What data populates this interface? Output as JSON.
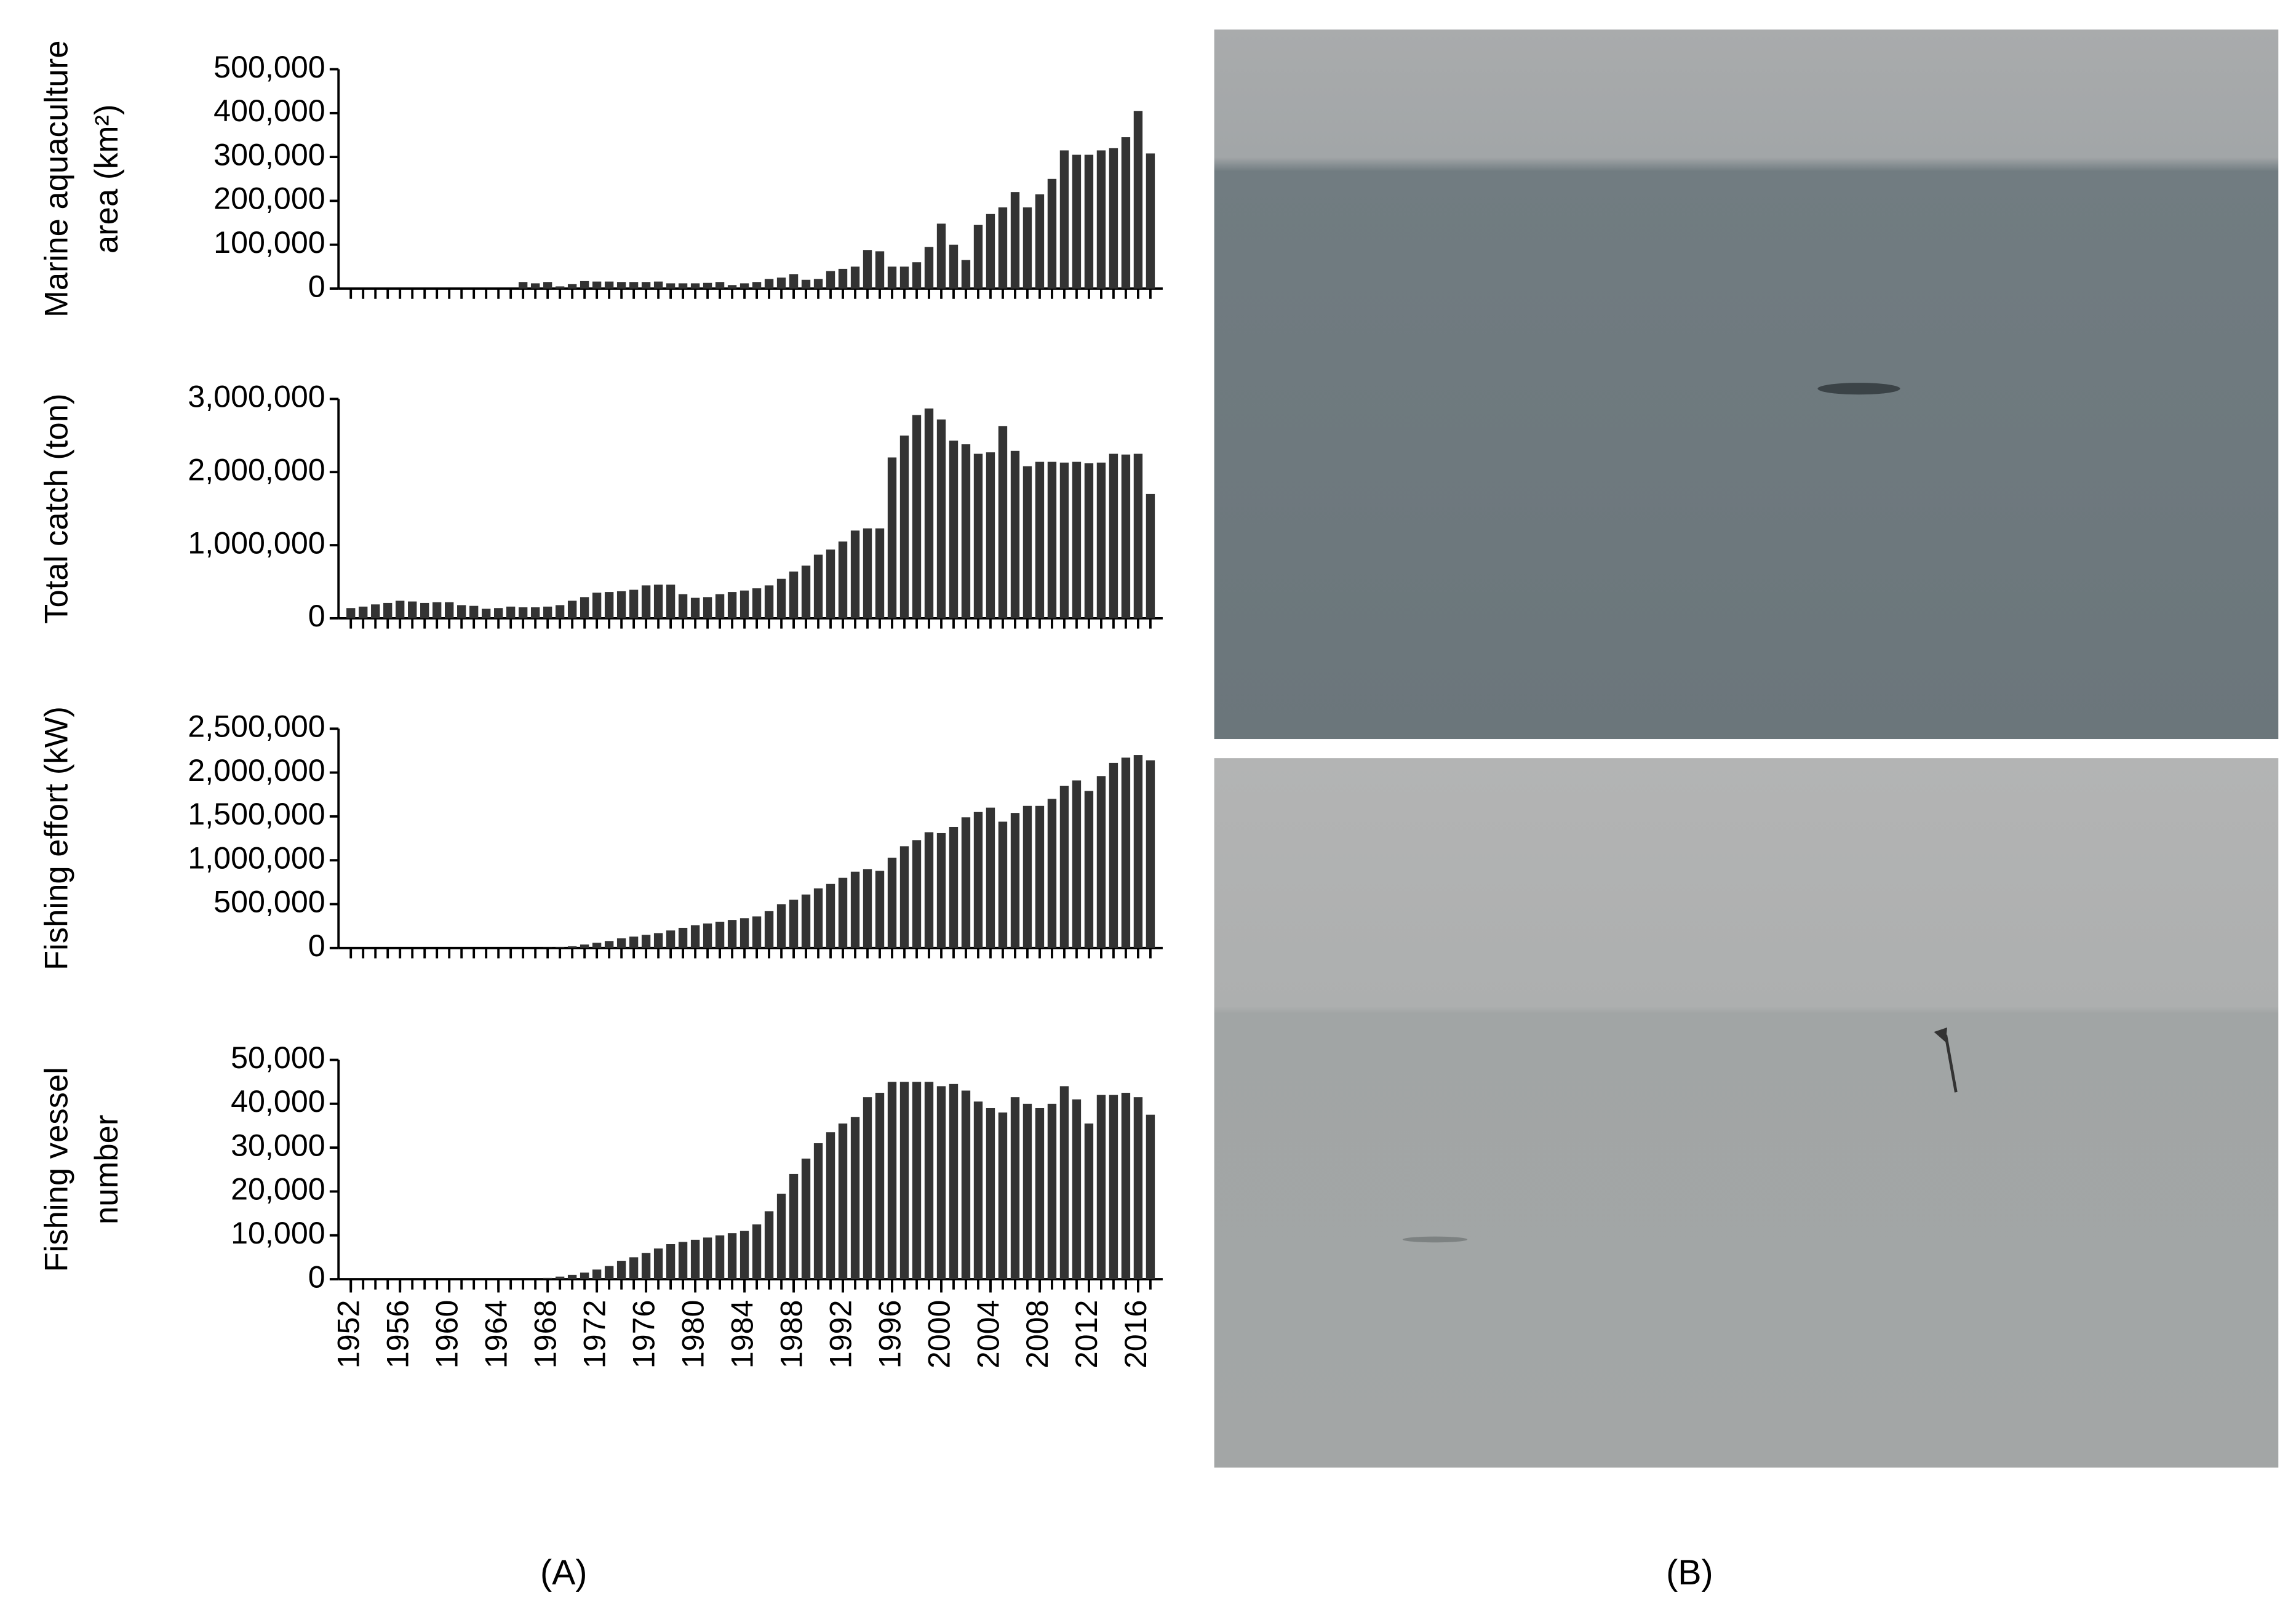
{
  "chart_data": [
    {
      "type": "bar",
      "ylabel": [
        "Marine aquaculture",
        "area (km²)"
      ],
      "color": "#333333",
      "x": [
        1952,
        1953,
        1954,
        1955,
        1956,
        1957,
        1958,
        1959,
        1960,
        1961,
        1962,
        1963,
        1964,
        1965,
        1966,
        1967,
        1968,
        1969,
        1970,
        1971,
        1972,
        1973,
        1974,
        1975,
        1976,
        1977,
        1978,
        1979,
        1980,
        1981,
        1982,
        1983,
        1984,
        1985,
        1986,
        1987,
        1988,
        1989,
        1990,
        1991,
        1992,
        1993,
        1994,
        1995,
        1996,
        1997,
        1998,
        1999,
        2000,
        2001,
        2002,
        2003,
        2004,
        2005,
        2006,
        2007,
        2008,
        2009,
        2010,
        2011,
        2012,
        2013,
        2014,
        2015,
        2016,
        2017
      ],
      "values": [
        0,
        0,
        0,
        0,
        0,
        0,
        0,
        0,
        0,
        0,
        0,
        0,
        0,
        0,
        15000,
        12000,
        15000,
        5000,
        10000,
        17000,
        16000,
        16000,
        15000,
        15000,
        15000,
        16000,
        12000,
        12000,
        12000,
        13000,
        15000,
        8000,
        12000,
        15000,
        22000,
        25000,
        33000,
        20000,
        22000,
        40000,
        45000,
        50000,
        88000,
        85000,
        50000,
        50000,
        60000,
        95000,
        148000,
        100000,
        65000,
        145000,
        170000,
        185000,
        220000,
        185000,
        215000,
        250000,
        315000,
        305000,
        305000,
        315000,
        320000,
        345000,
        405000,
        308000
      ],
      "xlim": [
        1951,
        2018
      ],
      "ylim": [
        0,
        500000
      ],
      "yticks": [
        0,
        {
          "value": 100000,
          "label": "100,000"
        },
        {
          "value": 200000,
          "label": "200,000"
        },
        {
          "value": 300000,
          "label": "300,000"
        },
        {
          "value": 400000,
          "label": "400,000"
        },
        {
          "value": 500000,
          "label": "500,000"
        }
      ]
    },
    {
      "type": "bar",
      "ylabel": [
        "Total catch (ton)"
      ],
      "color": "#333333",
      "x": [
        1952,
        1953,
        1954,
        1955,
        1956,
        1957,
        1958,
        1959,
        1960,
        1961,
        1962,
        1963,
        1964,
        1965,
        1966,
        1967,
        1968,
        1969,
        1970,
        1971,
        1972,
        1973,
        1974,
        1975,
        1976,
        1977,
        1978,
        1979,
        1980,
        1981,
        1982,
        1983,
        1984,
        1985,
        1986,
        1987,
        1988,
        1989,
        1990,
        1991,
        1992,
        1993,
        1994,
        1995,
        1996,
        1997,
        1998,
        1999,
        2000,
        2001,
        2002,
        2003,
        2004,
        2005,
        2006,
        2007,
        2008,
        2009,
        2010,
        2011,
        2012,
        2013,
        2014,
        2015,
        2016,
        2017
      ],
      "values": [
        140000,
        160000,
        190000,
        210000,
        240000,
        230000,
        210000,
        220000,
        220000,
        180000,
        170000,
        130000,
        140000,
        160000,
        150000,
        150000,
        160000,
        180000,
        240000,
        290000,
        350000,
        360000,
        370000,
        390000,
        450000,
        460000,
        460000,
        330000,
        280000,
        290000,
        330000,
        360000,
        380000,
        410000,
        450000,
        540000,
        640000,
        720000,
        870000,
        940000,
        1050000,
        1200000,
        1230000,
        1230000,
        2200000,
        2500000,
        2780000,
        2870000,
        2720000,
        2430000,
        2380000,
        2250000,
        2270000,
        2630000,
        2290000,
        2080000,
        2140000,
        2140000,
        2130000,
        2140000,
        2120000,
        2130000,
        2250000,
        2240000,
        2250000,
        1700000
      ],
      "xlim": [
        1951,
        2018
      ],
      "ylim": [
        0,
        3000000
      ],
      "yticks": [
        0,
        {
          "value": 1000000,
          "label": "1,000,000"
        },
        {
          "value": 2000000,
          "label": "2,000,000"
        },
        {
          "value": 3000000,
          "label": "3,000,000"
        }
      ]
    },
    {
      "type": "bar",
      "ylabel": [
        "Fishing effort (kW)"
      ],
      "color": "#333333",
      "x": [
        1952,
        1953,
        1954,
        1955,
        1956,
        1957,
        1958,
        1959,
        1960,
        1961,
        1962,
        1963,
        1964,
        1965,
        1966,
        1967,
        1968,
        1969,
        1970,
        1971,
        1972,
        1973,
        1974,
        1975,
        1976,
        1977,
        1978,
        1979,
        1980,
        1981,
        1982,
        1983,
        1984,
        1985,
        1986,
        1987,
        1988,
        1989,
        1990,
        1991,
        1992,
        1993,
        1994,
        1995,
        1996,
        1997,
        1998,
        1999,
        2000,
        2001,
        2002,
        2003,
        2004,
        2005,
        2006,
        2007,
        2008,
        2009,
        2010,
        2011,
        2012,
        2013,
        2014,
        2015,
        2016,
        2017
      ],
      "values": [
        0,
        0,
        0,
        0,
        0,
        0,
        0,
        0,
        0,
        0,
        0,
        0,
        0,
        0,
        0,
        0,
        5000,
        10000,
        20000,
        40000,
        60000,
        80000,
        110000,
        130000,
        150000,
        170000,
        200000,
        230000,
        260000,
        280000,
        300000,
        320000,
        340000,
        360000,
        420000,
        500000,
        550000,
        610000,
        680000,
        730000,
        800000,
        870000,
        900000,
        880000,
        1030000,
        1160000,
        1230000,
        1320000,
        1310000,
        1380000,
        1490000,
        1550000,
        1600000,
        1440000,
        1540000,
        1620000,
        1620000,
        1700000,
        1850000,
        1910000,
        1790000,
        1960000,
        2110000,
        2170000,
        2200000,
        2140000
      ],
      "xlim": [
        1951,
        2018
      ],
      "ylim": [
        0,
        2500000
      ],
      "yticks": [
        0,
        {
          "value": 500000,
          "label": "500,000"
        },
        {
          "value": 1000000,
          "label": "1,000,000"
        },
        {
          "value": 1500000,
          "label": "1,500,000"
        },
        {
          "value": 2000000,
          "label": "2,000,000"
        },
        {
          "value": 2500000,
          "label": "2,500,000"
        }
      ]
    },
    {
      "type": "bar",
      "ylabel": [
        "Fishing vessel",
        "number"
      ],
      "color": "#333333",
      "x": [
        1952,
        1953,
        1954,
        1955,
        1956,
        1957,
        1958,
        1959,
        1960,
        1961,
        1962,
        1963,
        1964,
        1965,
        1966,
        1967,
        1968,
        1969,
        1970,
        1971,
        1972,
        1973,
        1974,
        1975,
        1976,
        1977,
        1978,
        1979,
        1980,
        1981,
        1982,
        1983,
        1984,
        1985,
        1986,
        1987,
        1988,
        1989,
        1990,
        1991,
        1992,
        1993,
        1994,
        1995,
        1996,
        1997,
        1998,
        1999,
        2000,
        2001,
        2002,
        2003,
        2004,
        2005,
        2006,
        2007,
        2008,
        2009,
        2010,
        2011,
        2012,
        2013,
        2014,
        2015,
        2016,
        2017
      ],
      "values": [
        0,
        0,
        0,
        0,
        0,
        0,
        0,
        0,
        0,
        0,
        0,
        0,
        0,
        0,
        0,
        0,
        300,
        600,
        1000,
        1500,
        2200,
        3000,
        4200,
        5000,
        6000,
        7000,
        8000,
        8500,
        9000,
        9500,
        10000,
        10500,
        11000,
        12500,
        15500,
        19500,
        24000,
        27500,
        31000,
        33500,
        35500,
        37000,
        41500,
        42500,
        45000,
        45000,
        45000,
        45000,
        44000,
        44500,
        43000,
        40500,
        39000,
        38000,
        41500,
        40000,
        39000,
        40000,
        44000,
        41000,
        35500,
        42000,
        42000,
        42500,
        41500,
        37500
      ],
      "xlim": [
        1951,
        2018
      ],
      "ylim": [
        0,
        50000
      ],
      "yticks": [
        0,
        {
          "value": 10000,
          "label": "10,000"
        },
        {
          "value": 20000,
          "label": "20,000"
        },
        {
          "value": 30000,
          "label": "30,000"
        },
        {
          "value": 40000,
          "label": "40,000"
        },
        {
          "value": 50000,
          "label": "50,000"
        }
      ],
      "xticks": [
        1952,
        1956,
        1960,
        1964,
        1968,
        1972,
        1976,
        1980,
        1984,
        1988,
        1992,
        1996,
        2000,
        2004,
        2008,
        2012,
        2016
      ]
    }
  ],
  "panels": [
    "(A)",
    "(B)"
  ]
}
